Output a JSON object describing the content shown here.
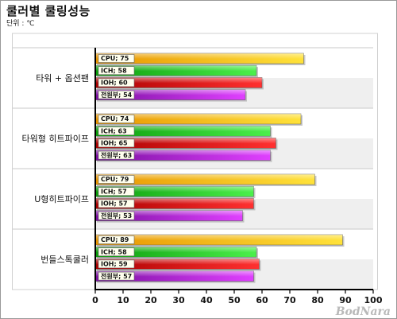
{
  "header": {
    "title": "쿨러별 쿨링성능",
    "unit": "단위 : ℃"
  },
  "logo": {
    "text": "BodNara"
  },
  "colors": {
    "CPU": [
      "#e89400",
      "#ffe23a"
    ],
    "ICH": [
      "#0a9a0a",
      "#4cf04c"
    ],
    "IOH": [
      "#a80000",
      "#ff3030"
    ],
    "power": [
      "#7a10a0",
      "#e040ff"
    ],
    "band_light": "#ffffff",
    "band_dark": "#efefef",
    "tag_bg": "#ffffee"
  },
  "chart_data": {
    "type": "bar",
    "orientation": "horizontal",
    "title": "쿨러별 쿨링성능",
    "subtitle": "단위 : ℃",
    "categories": [
      "타워 + 옵션팬",
      "타워형 히트파이프",
      "U형히트파이프",
      "번들스톡쿨러"
    ],
    "series": [
      {
        "name": "CPU",
        "values": [
          75,
          74,
          79,
          89
        ]
      },
      {
        "name": "ICH",
        "values": [
          58,
          63,
          57,
          58
        ]
      },
      {
        "name": "IOH",
        "values": [
          60,
          65,
          57,
          59
        ]
      },
      {
        "name": "전원부",
        "values": [
          54,
          63,
          53,
          57
        ]
      }
    ],
    "bar_labels": [
      [
        "CPU; 75",
        "ICH; 58",
        "IOH; 60",
        "전원부; 54"
      ],
      [
        "CPU; 74",
        "ICH; 63",
        "IOH; 65",
        "전원부; 63"
      ],
      [
        "CPU; 79",
        "ICH; 57",
        "IOH; 57",
        "전원부; 53"
      ],
      [
        "CPU; 89",
        "ICH; 58",
        "IOH; 59",
        "전원부; 57"
      ]
    ],
    "xlim": [
      0,
      100
    ],
    "xticks": [
      0,
      10,
      20,
      30,
      40,
      50,
      60,
      70,
      80,
      90,
      100
    ],
    "grid": false,
    "legend": "none"
  }
}
